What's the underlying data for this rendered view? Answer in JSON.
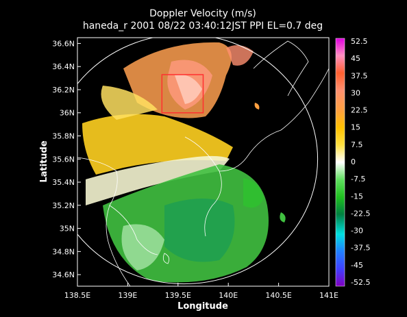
{
  "chart_data": {
    "type": "heatmap",
    "title_line1": "Doppler Velocity (m/s)",
    "title_line2": "haneda_r 2001 08/22 03:40:12JST PPI EL=0.7 deg",
    "xlabel": "Longitude",
    "ylabel": "Latitude",
    "xlim": [
      138.5,
      141.0
    ],
    "ylim": [
      34.5,
      36.65
    ],
    "x_ticks": [
      {
        "value": 138.5,
        "label": "138.5E"
      },
      {
        "value": 139.0,
        "label": "139E"
      },
      {
        "value": 139.5,
        "label": "139.5E"
      },
      {
        "value": 140.0,
        "label": "140E"
      },
      {
        "value": 140.5,
        "label": "140.5E"
      },
      {
        "value": 141.0,
        "label": "141E"
      }
    ],
    "y_ticks": [
      {
        "value": 34.6,
        "label": "34.6N"
      },
      {
        "value": 34.8,
        "label": "34.8N"
      },
      {
        "value": 35.0,
        "label": "35N"
      },
      {
        "value": 35.2,
        "label": "35.2N"
      },
      {
        "value": 35.4,
        "label": "35.4N"
      },
      {
        "value": 35.6,
        "label": "35.6N"
      },
      {
        "value": 35.8,
        "label": "35.8N"
      },
      {
        "value": 36.0,
        "label": "36N"
      },
      {
        "value": 36.2,
        "label": "36.2N"
      },
      {
        "value": 36.4,
        "label": "36.4N"
      },
      {
        "value": 36.6,
        "label": "36.6N"
      }
    ],
    "colorbar": {
      "min": -52.5,
      "max": 52.5,
      "labels": [
        "52.5",
        "45",
        "37.5",
        "30",
        "22.5",
        "15",
        "7.5",
        "0",
        "-7.5",
        "-15",
        "-22.5",
        "-30",
        "-37.5",
        "-45",
        "-52.5"
      ],
      "colors": [
        "#e000e0",
        "#ff90c0",
        "#ff6030",
        "#ff9070",
        "#ffa040",
        "#ffc000",
        "#ffe040",
        "#ffffff",
        "#60e060",
        "#20c020",
        "#008040",
        "#00e0e0",
        "#2080ff",
        "#4040ff",
        "#8000c0"
      ]
    },
    "radar_center": {
      "lon": 139.56,
      "lat": 35.6
    },
    "radar_range_deg_lat": 1.08,
    "highlight_box": {
      "lon": [
        139.34,
        139.75
      ],
      "lat": [
        36.0,
        36.33
      ],
      "color": "#ff3030"
    }
  }
}
